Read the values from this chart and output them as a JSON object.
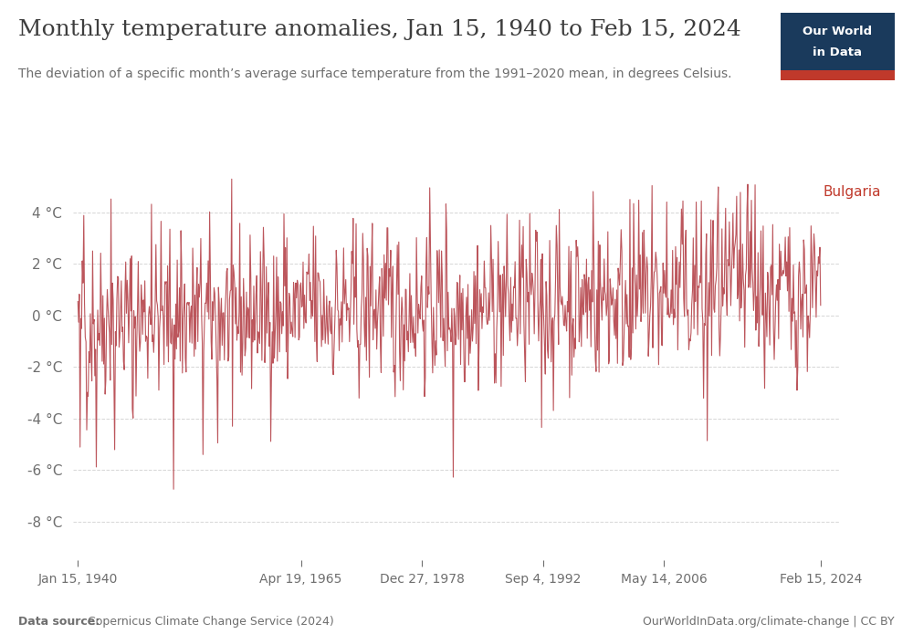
{
  "title": "Monthly temperature anomalies, Jan 15, 1940 to Feb 15, 2024",
  "subtitle": "The deviation of a specific month’s average surface temperature from the 1991–2020 mean, in degrees Celsius.",
  "country_label": "Bulgaria",
  "data_source_bold": "Data source:",
  "data_source_rest": " Copernicus Climate Change Service (2024)",
  "right_footer": "OurWorldInData.org/climate-change | CC BY",
  "ylabel_ticks": [
    "4 °C",
    "2 °C",
    "0 °C",
    "-2 °C",
    "-4 °C",
    "-6 °C",
    "-8 °C"
  ],
  "ytick_values": [
    4,
    2,
    0,
    -2,
    -4,
    -6,
    -8
  ],
  "xtick_labels": [
    "Jan 15, 1940",
    "Apr 19, 1965",
    "Dec 27, 1978",
    "Sep 4, 1992",
    "May 14, 2006",
    "Feb 15, 2024"
  ],
  "line_color": "#b5434a",
  "line_alpha": 0.9,
  "line_width": 0.8,
  "background_color": "#ffffff",
  "grid_color": "#cccccc",
  "title_color": "#3d3d3d",
  "subtitle_color": "#6e6e6e",
  "axis_color": "#6e6e6e",
  "owid_box_bg": "#1a3a5c",
  "owid_box_red": "#c0392b",
  "country_color": "#c0392b",
  "ylim": [
    -9.5,
    5.5
  ],
  "start_year": 1940,
  "start_month": 1,
  "end_year": 2024,
  "end_month": 2,
  "seed": 42
}
